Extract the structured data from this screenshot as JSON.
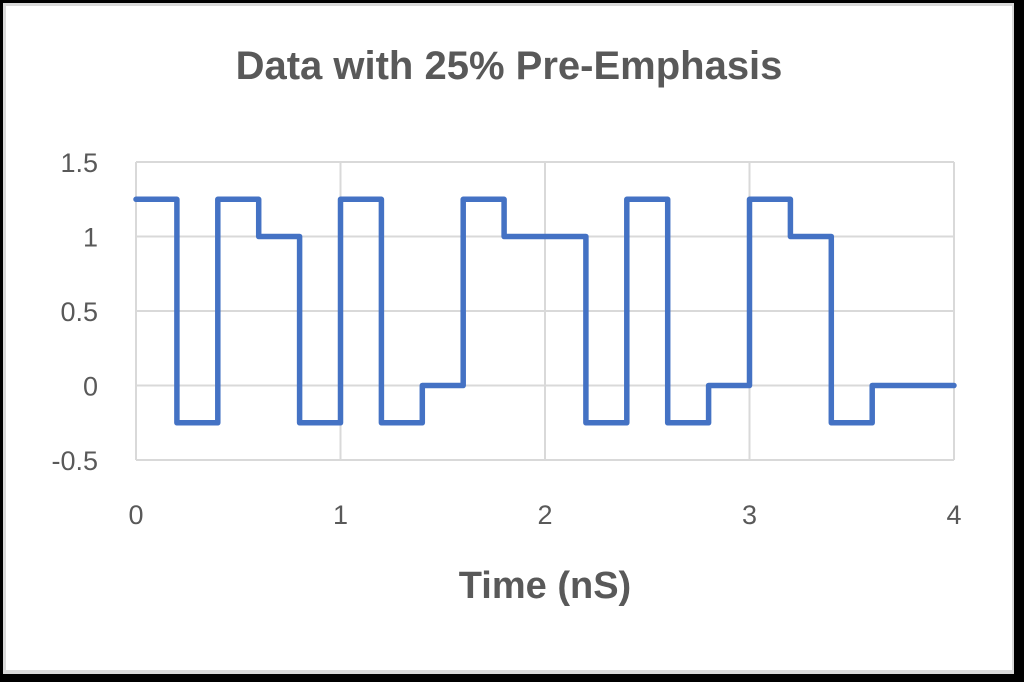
{
  "chart_data": {
    "type": "line",
    "title": "Data with 25% Pre-Emphasis",
    "xlabel": "Time (nS)",
    "ylabel": "",
    "xlim": [
      0,
      4
    ],
    "ylim": [
      -0.5,
      1.5
    ],
    "x_ticks": [
      0,
      1,
      2,
      3,
      4
    ],
    "x_tick_labels": [
      "0",
      "1",
      "2",
      "3",
      "4"
    ],
    "y_ticks": [
      1.5,
      1,
      0.5,
      0,
      -0.5
    ],
    "y_tick_labels": [
      "1.5",
      "1",
      "0.5",
      "0",
      "-0.5"
    ],
    "grid": true,
    "legend": "none",
    "line_style": "step",
    "series": [
      {
        "name": "Data with 25% Pre-Emphasis",
        "color": "#4472c4",
        "x": [
          0,
          0.2,
          0.2,
          0.4,
          0.4,
          0.6,
          0.6,
          0.8,
          0.8,
          1.0,
          1.0,
          1.2,
          1.2,
          1.4,
          1.4,
          1.6,
          1.6,
          1.8,
          1.8,
          2.2,
          2.2,
          2.4,
          2.4,
          2.6,
          2.6,
          2.8,
          2.8,
          3.0,
          3.0,
          3.2,
          3.2,
          3.4,
          3.4,
          3.6,
          3.6,
          4.0
        ],
        "y": [
          1.25,
          1.25,
          -0.25,
          -0.25,
          1.25,
          1.25,
          1.0,
          1.0,
          -0.25,
          -0.25,
          1.25,
          1.25,
          -0.25,
          -0.25,
          0,
          0,
          1.25,
          1.25,
          1.0,
          1.0,
          -0.25,
          -0.25,
          1.25,
          1.25,
          -0.25,
          -0.25,
          0,
          0,
          1.25,
          1.25,
          1.0,
          1.0,
          -0.25,
          -0.25,
          0,
          0
        ]
      }
    ],
    "segments": [
      {
        "t_start": 0.0,
        "t_end": 0.2,
        "value": 1.25
      },
      {
        "t_start": 0.2,
        "t_end": 0.4,
        "value": -0.25
      },
      {
        "t_start": 0.4,
        "t_end": 0.6,
        "value": 1.25
      },
      {
        "t_start": 0.6,
        "t_end": 0.8,
        "value": 1.0
      },
      {
        "t_start": 0.8,
        "t_end": 1.0,
        "value": -0.25
      },
      {
        "t_start": 1.0,
        "t_end": 1.2,
        "value": 1.25
      },
      {
        "t_start": 1.2,
        "t_end": 1.4,
        "value": -0.25
      },
      {
        "t_start": 1.4,
        "t_end": 1.6,
        "value": 0
      },
      {
        "t_start": 1.6,
        "t_end": 1.8,
        "value": 1.25
      },
      {
        "t_start": 1.8,
        "t_end": 2.2,
        "value": 1.0
      },
      {
        "t_start": 2.2,
        "t_end": 2.4,
        "value": -0.25
      },
      {
        "t_start": 2.4,
        "t_end": 2.6,
        "value": 1.25
      },
      {
        "t_start": 2.6,
        "t_end": 2.8,
        "value": -0.25
      },
      {
        "t_start": 2.8,
        "t_end": 3.0,
        "value": 0
      },
      {
        "t_start": 3.0,
        "t_end": 3.2,
        "value": 1.25
      },
      {
        "t_start": 3.2,
        "t_end": 3.4,
        "value": 1.0
      },
      {
        "t_start": 3.4,
        "t_end": 3.6,
        "value": -0.25
      },
      {
        "t_start": 3.6,
        "t_end": 4.0,
        "value": 0
      }
    ]
  },
  "colors": {
    "line": "#4472c4",
    "gridline": "#d9d9d9",
    "text": "#595959",
    "background": "#ffffff"
  }
}
